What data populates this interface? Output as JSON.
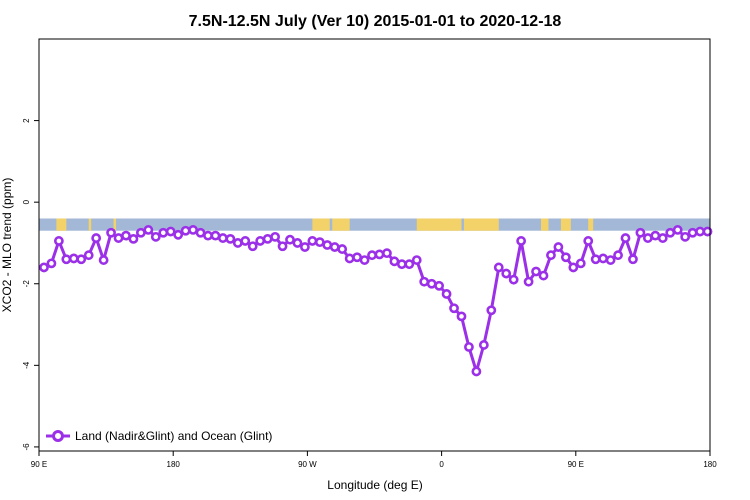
{
  "chart_data": {
    "type": "line",
    "title": "7.5N-12.5N July (Ver 10)   2015-01-01 to 2020-12-18",
    "xlabel": "Longitude (deg E)",
    "ylabel": "XCO2 - MLO trend (ppm)",
    "xlim": [
      -90,
      180
    ],
    "ylim": [
      -6.1,
      4.0
    ],
    "x_ticks": [
      {
        "value": -90,
        "label": "90 E"
      },
      {
        "value": -36,
        "label": "180"
      },
      {
        "value": 18,
        "label": "90 W"
      },
      {
        "value": 72,
        "label": "0"
      },
      {
        "value": 126,
        "label": "90 E"
      },
      {
        "value": 180,
        "label": "180"
      }
    ],
    "y_ticks": [
      -6,
      -4,
      -2,
      0,
      2
    ],
    "grid": false,
    "legend_position": "bottom-left",
    "land_ocean_band": {
      "y_range": [
        -0.7,
        -0.4
      ],
      "ocean_color": "#a3b8d6",
      "land_color": "#f4d26a",
      "land_segments": [
        [
          -83,
          -79
        ],
        [
          -70,
          -69
        ],
        [
          -60,
          -59
        ],
        [
          20,
          27
        ],
        [
          28,
          35
        ],
        [
          62,
          80
        ],
        [
          81,
          95
        ],
        [
          112,
          115
        ],
        [
          120,
          124
        ],
        [
          131,
          133
        ]
      ]
    },
    "series": [
      {
        "name": "Land (Nadir&Glint) and Ocean (Glint)",
        "color": "#9b30e8",
        "x": [
          -88,
          -85,
          -82,
          -79,
          -76,
          -73,
          -70,
          -67,
          -64,
          -61,
          -58,
          -55,
          -52,
          -49,
          -46,
          -43,
          -40,
          -37,
          -34,
          -31,
          -28,
          -25,
          -22,
          -19,
          -16,
          -13,
          -10,
          -7,
          -4,
          -1,
          2,
          5,
          8,
          11,
          14,
          17,
          20,
          23,
          26,
          29,
          32,
          35,
          38,
          41,
          44,
          47,
          50,
          53,
          56,
          59,
          62,
          65,
          68,
          71,
          74,
          77,
          80,
          83,
          86,
          89,
          92,
          95,
          98,
          101,
          104,
          107,
          110,
          113,
          116,
          119,
          122,
          125,
          128,
          131,
          134,
          137,
          140,
          143,
          146,
          149,
          152,
          155,
          158,
          161,
          164,
          167,
          170,
          173,
          176,
          179
        ],
        "y": [
          -1.6,
          -1.5,
          -0.95,
          -1.4,
          -1.38,
          -1.4,
          -1.3,
          -0.88,
          -1.42,
          -0.75,
          -0.88,
          -0.82,
          -0.9,
          -0.75,
          -0.68,
          -0.85,
          -0.75,
          -0.72,
          -0.8,
          -0.7,
          -0.68,
          -0.75,
          -0.82,
          -0.82,
          -0.88,
          -0.9,
          -1.0,
          -0.95,
          -1.08,
          -0.95,
          -0.9,
          -0.85,
          -1.08,
          -0.92,
          -1.0,
          -1.1,
          -0.95,
          -0.98,
          -1.05,
          -1.1,
          -1.15,
          -1.38,
          -1.35,
          -1.42,
          -1.3,
          -1.28,
          -1.25,
          -1.45,
          -1.52,
          -1.52,
          -1.42,
          -1.95,
          -2.0,
          -2.05,
          -2.25,
          -2.6,
          -2.8,
          -3.55,
          -4.15,
          -3.5,
          -2.65,
          -1.6,
          -1.75,
          -1.9,
          -0.95,
          -1.95,
          -1.7,
          -1.8,
          -1.3,
          -1.1,
          -1.35,
          -1.6,
          -1.5,
          -0.95,
          -1.4,
          -1.38,
          -1.42,
          -1.3,
          -0.88,
          -1.4,
          -0.75,
          -0.88,
          -0.82,
          -0.88,
          -0.75,
          -0.68,
          -0.85,
          -0.75,
          -0.72,
          -0.72
        ]
      }
    ]
  }
}
